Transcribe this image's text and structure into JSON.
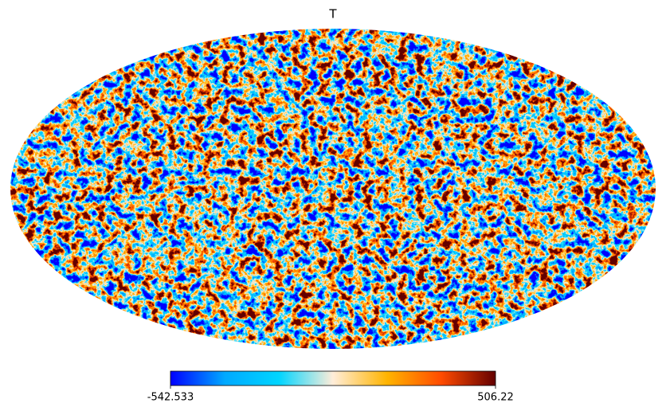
{
  "chart_data": {
    "type": "mollweide",
    "title": "T",
    "clim": [
      -542.533,
      506.22
    ],
    "cticks": [
      -542.533,
      506.22
    ],
    "colormap": [
      "#0000ff",
      "#00a9ff",
      "#00d5ff",
      "#ffedd9",
      "#ffb400",
      "#ff4b00",
      "#640000"
    ]
  }
}
